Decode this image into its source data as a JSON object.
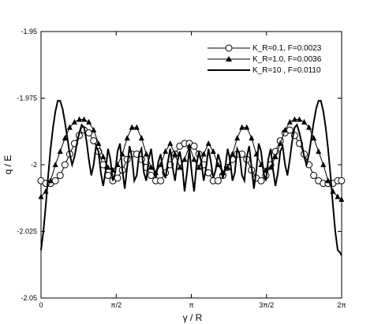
{
  "chart_data": {
    "type": "line",
    "xlabel": "γ / R",
    "ylabel": "q / E",
    "xlim": [
      0,
      6.2832
    ],
    "ylim": [
      -2.05,
      -1.95
    ],
    "x_ticks": [
      {
        "value": 0,
        "label": "0"
      },
      {
        "value": 1.5708,
        "label": "π/2"
      },
      {
        "value": 3.1416,
        "label": "π"
      },
      {
        "value": 4.7124,
        "label": "3π/2"
      },
      {
        "value": 6.2832,
        "label": "2π"
      }
    ],
    "y_ticks": [
      {
        "value": -1.95,
        "label": "-1.95"
      },
      {
        "value": -1.975,
        "label": "-1.975"
      },
      {
        "value": -2.0,
        "label": "-2"
      },
      {
        "value": -2.025,
        "label": "-2.025"
      },
      {
        "value": -2.05,
        "label": "-2.05"
      }
    ],
    "legend_position": "top-right",
    "series": [
      {
        "name": "K_R=0.1, F=0.0023",
        "marker": "circle",
        "x": [
          0.0,
          0.1,
          0.2,
          0.3,
          0.4,
          0.5,
          0.6,
          0.7,
          0.8,
          0.9,
          1.0,
          1.1,
          1.2,
          1.3,
          1.4,
          1.5,
          1.6,
          1.7,
          1.8,
          1.9,
          2.0,
          2.1,
          2.2,
          2.3,
          2.4,
          2.5,
          2.6,
          2.7,
          2.8,
          2.9,
          3.0,
          3.1,
          3.2,
          3.3,
          3.4,
          3.5,
          3.6,
          3.7,
          3.8,
          3.9,
          4.0,
          4.1,
          4.2,
          4.3,
          4.4,
          4.5,
          4.6,
          4.7,
          4.8,
          4.9,
          5.0,
          5.1,
          5.2,
          5.3,
          5.4,
          5.5,
          5.6,
          5.7,
          5.8,
          5.9,
          6.0,
          6.1,
          6.2,
          6.28
        ],
        "values": [
          -2.006,
          -2.007,
          -2.007,
          -2.006,
          -2.004,
          -2.0,
          -1.996,
          -1.992,
          -1.989,
          -1.987,
          -1.988,
          -1.991,
          -1.995,
          -2.0,
          -2.004,
          -2.006,
          -2.005,
          -2.002,
          -1.998,
          -1.996,
          -1.996,
          -1.998,
          -2.001,
          -2.004,
          -2.006,
          -2.006,
          -2.003,
          -2.0,
          -1.996,
          -1.993,
          -1.992,
          -1.992,
          -1.993,
          -1.996,
          -2.0,
          -2.003,
          -2.006,
          -2.006,
          -2.004,
          -2.001,
          -1.998,
          -1.996,
          -1.996,
          -1.998,
          -2.002,
          -2.005,
          -2.006,
          -2.004,
          -2.0,
          -1.995,
          -1.991,
          -1.988,
          -1.987,
          -1.989,
          -1.992,
          -1.996,
          -2.0,
          -2.004,
          -2.006,
          -2.007,
          -2.007,
          -2.007,
          -2.006,
          -2.006
        ]
      },
      {
        "name": "K_R=1.0, F=0.0036",
        "marker": "triangle",
        "x": [
          0.0,
          0.1,
          0.2,
          0.3,
          0.4,
          0.5,
          0.6,
          0.7,
          0.8,
          0.9,
          1.0,
          1.1,
          1.2,
          1.3,
          1.4,
          1.5,
          1.6,
          1.7,
          1.8,
          1.9,
          2.0,
          2.1,
          2.2,
          2.3,
          2.4,
          2.5,
          2.6,
          2.7,
          2.8,
          2.9,
          3.0,
          3.1,
          3.2,
          3.3,
          3.4,
          3.5,
          3.6,
          3.7,
          3.8,
          3.9,
          4.0,
          4.1,
          4.2,
          4.3,
          4.4,
          4.5,
          4.6,
          4.7,
          4.8,
          4.9,
          5.0,
          5.1,
          5.2,
          5.3,
          5.4,
          5.5,
          5.6,
          5.7,
          5.8,
          5.9,
          6.0,
          6.1,
          6.2,
          6.28
        ],
        "values": [
          -2.012,
          -2.01,
          -2.006,
          -2.0,
          -1.995,
          -1.99,
          -1.986,
          -1.984,
          -1.983,
          -1.983,
          -1.984,
          -1.987,
          -1.992,
          -1.997,
          -2.001,
          -2.002,
          -2.0,
          -1.996,
          -1.99,
          -1.986,
          -1.986,
          -1.99,
          -1.996,
          -2.001,
          -2.003,
          -2.0,
          -1.995,
          -1.992,
          -1.996,
          -2.001,
          -1.998,
          -1.993,
          -1.998,
          -2.001,
          -1.996,
          -1.992,
          -1.995,
          -2.0,
          -2.003,
          -2.001,
          -1.996,
          -1.99,
          -1.986,
          -1.986,
          -1.99,
          -1.996,
          -2.0,
          -2.002,
          -2.001,
          -1.997,
          -1.992,
          -1.987,
          -1.984,
          -1.983,
          -1.983,
          -1.984,
          -1.986,
          -1.99,
          -1.995,
          -2.0,
          -2.006,
          -2.01,
          -2.012,
          -2.013
        ]
      },
      {
        "name": "K_R=10 , F=0.0110",
        "marker": "none",
        "x": [
          0.0,
          0.05,
          0.1,
          0.15,
          0.2,
          0.25,
          0.3,
          0.35,
          0.4,
          0.45,
          0.5,
          0.55,
          0.6,
          0.65,
          0.7,
          0.75,
          0.8,
          0.85,
          0.9,
          0.95,
          1.0,
          1.05,
          1.1,
          1.15,
          1.2,
          1.25,
          1.3,
          1.35,
          1.4,
          1.45,
          1.5,
          1.55,
          1.6,
          1.65,
          1.7,
          1.75,
          1.8,
          1.85,
          1.9,
          1.95,
          2.0,
          2.05,
          2.1,
          2.15,
          2.2,
          2.25,
          2.3,
          2.35,
          2.4,
          2.45,
          2.5,
          2.55,
          2.6,
          2.65,
          2.7,
          2.75,
          2.8,
          2.85,
          2.9,
          2.95,
          3.0,
          3.05,
          3.1,
          3.15,
          3.2,
          3.25,
          3.3,
          3.35,
          3.4,
          3.45,
          3.5,
          3.55,
          3.6,
          3.65,
          3.7,
          3.75,
          3.8,
          3.85,
          3.9,
          3.95,
          4.0,
          4.05,
          4.1,
          4.15,
          4.2,
          4.25,
          4.3,
          4.35,
          4.4,
          4.45,
          4.5,
          4.55,
          4.6,
          4.65,
          4.7,
          4.75,
          4.8,
          4.85,
          4.9,
          4.95,
          5.0,
          5.05,
          5.1,
          5.15,
          5.2,
          5.25,
          5.3,
          5.35,
          5.4,
          5.45,
          5.5,
          5.55,
          5.6,
          5.65,
          5.7,
          5.75,
          5.8,
          5.85,
          5.9,
          5.95,
          6.0,
          6.05,
          6.1,
          6.15,
          6.2,
          6.25,
          6.28
        ],
        "values": [
          -2.032,
          -2.025,
          -2.015,
          -2.004,
          -1.994,
          -1.986,
          -1.98,
          -1.976,
          -1.976,
          -1.979,
          -1.984,
          -1.99,
          -1.996,
          -2.0,
          -1.997,
          -1.992,
          -1.988,
          -1.985,
          -1.986,
          -1.991,
          -1.998,
          -2.004,
          -2.0,
          -1.993,
          -1.995,
          -2.003,
          -2.008,
          -2.002,
          -1.994,
          -1.998,
          -2.006,
          -2.003,
          -1.995,
          -1.992,
          -2.002,
          -2.009,
          -2.001,
          -1.993,
          -1.997,
          -2.006,
          -2.004,
          -1.996,
          -1.994,
          -2.003,
          -2.006,
          -1.998,
          -1.994,
          -2.001,
          -2.005,
          -1.999,
          -1.996,
          -2.002,
          -2.005,
          -1.999,
          -1.994,
          -2.001,
          -2.006,
          -1.999,
          -1.995,
          -2.0,
          -2.01,
          -2.003,
          -1.994,
          -2.003,
          -2.01,
          -2.0,
          -1.995,
          -1.999,
          -2.006,
          -2.001,
          -1.994,
          -1.999,
          -2.005,
          -2.002,
          -1.996,
          -1.999,
          -2.005,
          -2.001,
          -1.994,
          -1.998,
          -2.006,
          -2.003,
          -1.994,
          -1.996,
          -2.004,
          -2.006,
          -1.997,
          -1.993,
          -2.001,
          -2.009,
          -2.002,
          -1.992,
          -1.995,
          -2.003,
          -2.006,
          -1.998,
          -1.994,
          -2.002,
          -2.008,
          -2.003,
          -1.995,
          -1.993,
          -2.0,
          -2.004,
          -1.998,
          -1.991,
          -1.986,
          -1.985,
          -1.988,
          -1.992,
          -1.997,
          -2.0,
          -1.996,
          -1.99,
          -1.984,
          -1.979,
          -1.976,
          -1.976,
          -1.98,
          -1.986,
          -1.994,
          -2.004,
          -2.015,
          -2.025,
          -2.032,
          -2.033,
          -2.034
        ]
      }
    ]
  }
}
